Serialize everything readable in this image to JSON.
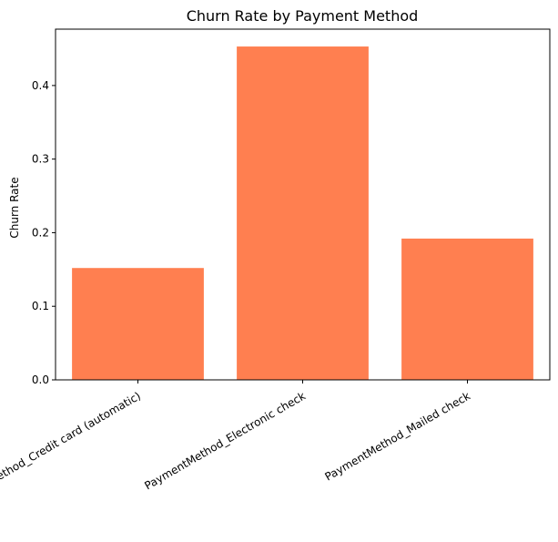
{
  "chart_data": {
    "type": "bar",
    "title": "Churn Rate by Payment Method",
    "xlabel": "",
    "ylabel": "Churn Rate",
    "categories": [
      "PaymentMethod_Credit card (automatic)",
      "PaymentMethod_Electronic check",
      "PaymentMethod_Mailed check"
    ],
    "values": [
      0.152,
      0.453,
      0.192
    ],
    "ylim": [
      0,
      0.4766
    ],
    "yticks": [
      0.0,
      0.1,
      0.2,
      0.3,
      0.4
    ],
    "ytick_labels": [
      "0.0",
      "0.1",
      "0.2",
      "0.3",
      "0.4"
    ],
    "bar_color": "#ff7f50",
    "grid": false,
    "legend": "none"
  }
}
